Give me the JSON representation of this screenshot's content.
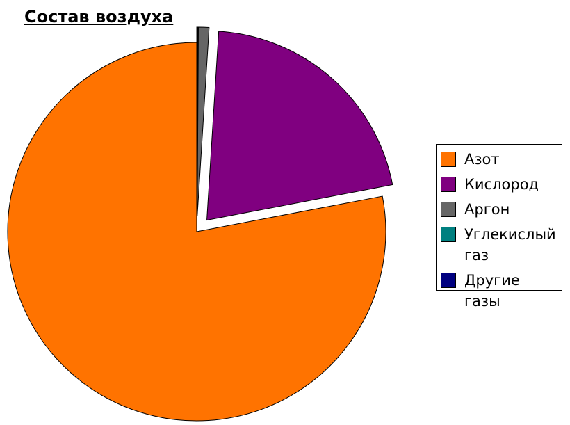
{
  "chart_data": {
    "type": "pie",
    "title": "Состав воздуха",
    "categories": [
      "Азот",
      "Кислород",
      "Аргон",
      "Углекислый газ",
      "Другие газы"
    ],
    "values": [
      78,
      21,
      0.9,
      0.04,
      0.06
    ],
    "colors": [
      "#ff7300",
      "#800080",
      "#666666",
      "#008080",
      "#000080"
    ],
    "legend": "right"
  }
}
